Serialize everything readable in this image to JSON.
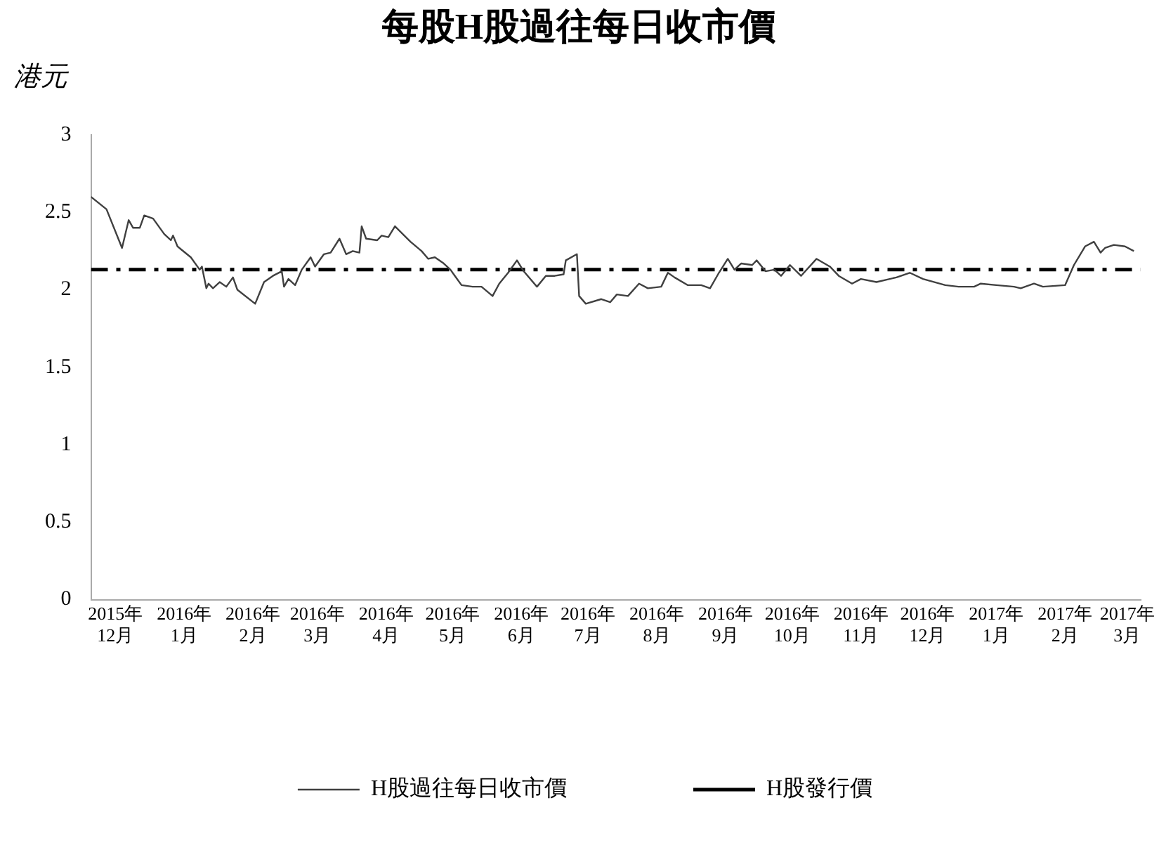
{
  "chart_data": {
    "type": "line",
    "title": "每股H股過往每日收市價",
    "ylabel": "港元",
    "xlim": [
      "2015-11-20",
      "2017-03-07"
    ],
    "xticks": [
      {
        "value": "2015-12-01",
        "label": "2015年\n12月"
      },
      {
        "value": "2016-01-01",
        "label": "2016年\n1月"
      },
      {
        "value": "2016-02-01",
        "label": "2016年\n2月"
      },
      {
        "value": "2016-03-01",
        "label": "2016年\n3月"
      },
      {
        "value": "2016-04-01",
        "label": "2016年\n4月"
      },
      {
        "value": "2016-05-01",
        "label": "2016年\n5月"
      },
      {
        "value": "2016-06-01",
        "label": "2016年\n6月"
      },
      {
        "value": "2016-07-01",
        "label": "2016年\n7月"
      },
      {
        "value": "2016-08-01",
        "label": "2016年\n8月"
      },
      {
        "value": "2016-09-01",
        "label": "2016年\n9月"
      },
      {
        "value": "2016-10-01",
        "label": "2016年\n10月"
      },
      {
        "value": "2016-11-01",
        "label": "2016年\n11月"
      },
      {
        "value": "2016-12-01",
        "label": "2016年\n12月"
      },
      {
        "value": "2017-01-01",
        "label": "2017年\n1月"
      },
      {
        "value": "2017-02-01",
        "label": "2017年\n2月"
      },
      {
        "value": "2017-03-01",
        "label": "2017年\n3月"
      }
    ],
    "ylim": [
      0,
      3
    ],
    "yticks": [
      0,
      0.5,
      1,
      1.5,
      2,
      2.5,
      3
    ],
    "grid": false,
    "legend": "bottom",
    "marker": "none",
    "x": [
      "2015-11-20",
      "2015-11-27",
      "2015-12-04",
      "2015-12-07",
      "2015-12-09",
      "2015-12-12",
      "2015-12-14",
      "2015-12-18",
      "2015-12-23",
      "2015-12-26",
      "2015-12-27",
      "2015-12-29",
      "2016-01-04",
      "2016-01-08",
      "2016-01-09",
      "2016-01-11",
      "2016-01-12",
      "2016-01-14",
      "2016-01-17",
      "2016-01-20",
      "2016-01-23",
      "2016-01-25",
      "2016-02-02",
      "2016-02-06",
      "2016-02-10",
      "2016-02-14",
      "2016-02-15",
      "2016-02-17",
      "2016-02-20",
      "2016-02-23",
      "2016-02-27",
      "2016-02-29",
      "2016-03-04",
      "2016-03-07",
      "2016-03-11",
      "2016-03-14",
      "2016-03-17",
      "2016-03-20",
      "2016-03-21",
      "2016-03-23",
      "2016-03-28",
      "2016-03-30",
      "2016-04-02",
      "2016-04-05",
      "2016-04-12",
      "2016-04-17",
      "2016-04-20",
      "2016-04-23",
      "2016-04-27",
      "2016-04-30",
      "2016-05-02",
      "2016-05-05",
      "2016-05-10",
      "2016-05-14",
      "2016-05-19",
      "2016-05-22",
      "2016-05-26",
      "2016-05-30",
      "2016-06-02",
      "2016-06-08",
      "2016-06-12",
      "2016-06-16",
      "2016-06-20",
      "2016-06-21",
      "2016-06-26",
      "2016-06-27",
      "2016-06-30",
      "2016-07-07",
      "2016-07-11",
      "2016-07-14",
      "2016-07-19",
      "2016-07-24",
      "2016-07-28",
      "2016-08-03",
      "2016-08-06",
      "2016-08-09",
      "2016-08-15",
      "2016-08-21",
      "2016-08-25",
      "2016-08-29",
      "2016-09-02",
      "2016-09-05",
      "2016-09-08",
      "2016-09-13",
      "2016-09-15",
      "2016-09-19",
      "2016-09-23",
      "2016-09-26",
      "2016-09-30",
      "2016-10-05",
      "2016-10-12",
      "2016-10-18",
      "2016-10-22",
      "2016-10-28",
      "2016-11-01",
      "2016-11-08",
      "2016-11-17",
      "2016-11-23",
      "2016-11-29",
      "2016-12-09",
      "2016-12-15",
      "2016-12-22",
      "2016-12-25",
      "2017-01-01",
      "2017-01-09",
      "2017-01-12",
      "2017-01-18",
      "2017-01-22",
      "2017-02-01",
      "2017-02-05",
      "2017-02-10",
      "2017-02-14",
      "2017-02-17",
      "2017-02-19",
      "2017-02-23",
      "2017-02-28",
      "2017-03-04"
    ],
    "series": [
      {
        "name": "H股過往每日收市價",
        "color": "#404040",
        "line_style": "solid",
        "values": [
          2.6,
          2.52,
          2.27,
          2.45,
          2.4,
          2.4,
          2.48,
          2.46,
          2.36,
          2.32,
          2.35,
          2.28,
          2.21,
          2.13,
          2.15,
          2.01,
          2.04,
          2.01,
          2.05,
          2.02,
          2.08,
          2.0,
          1.91,
          2.05,
          2.09,
          2.12,
          2.02,
          2.07,
          2.03,
          2.13,
          2.21,
          2.15,
          2.23,
          2.24,
          2.33,
          2.23,
          2.25,
          2.24,
          2.41,
          2.33,
          2.32,
          2.35,
          2.34,
          2.41,
          2.31,
          2.25,
          2.2,
          2.21,
          2.17,
          2.13,
          2.09,
          2.03,
          2.02,
          2.02,
          1.96,
          2.04,
          2.11,
          2.19,
          2.12,
          2.02,
          2.09,
          2.09,
          2.1,
          2.19,
          2.23,
          1.96,
          1.91,
          1.94,
          1.92,
          1.97,
          1.96,
          2.04,
          2.01,
          2.02,
          2.11,
          2.08,
          2.03,
          2.03,
          2.01,
          2.11,
          2.2,
          2.13,
          2.17,
          2.16,
          2.19,
          2.12,
          2.13,
          2.09,
          2.16,
          2.09,
          2.2,
          2.15,
          2.09,
          2.04,
          2.07,
          2.05,
          2.08,
          2.11,
          2.07,
          2.03,
          2.02,
          2.02,
          2.04,
          2.03,
          2.02,
          2.01,
          2.04,
          2.02,
          2.03,
          2.16,
          2.28,
          2.31,
          2.24,
          2.27,
          2.29,
          2.28,
          2.25
        ]
      }
    ],
    "ref_lines": [
      {
        "axis": "y",
        "value": 2.13,
        "label": "H股發行價",
        "color": "#000000",
        "line_style": "dashed"
      }
    ]
  }
}
